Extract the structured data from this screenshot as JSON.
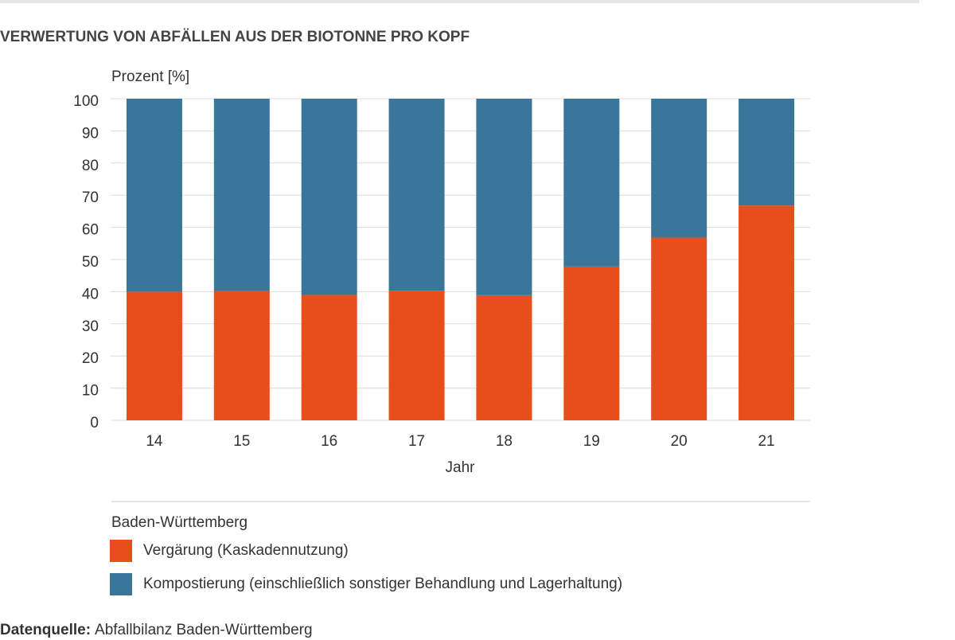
{
  "chart_data": {
    "type": "stacked-bar",
    "title": "VERWERTUNG VON ABFÄLLEN AUS DER BIOTONNE PRO KOPF",
    "y_label": "Prozent [%]",
    "x_label": "Jahr",
    "categories": [
      "14",
      "15",
      "16",
      "17",
      "18",
      "19",
      "20",
      "21"
    ],
    "series": [
      {
        "name": "Vergärung (Kaskadennutzung)",
        "color": "#e84e1b",
        "values": [
          40,
          40.2,
          39,
          40.3,
          38.9,
          47.8,
          56.8,
          66.8
        ]
      },
      {
        "name": "Kompostierung (einschließlich sonstiger Behandlung und Lagerhaltung)",
        "color": "#3a7699",
        "values": [
          60,
          59.8,
          61,
          59.7,
          61.1,
          52.2,
          43.2,
          33.2
        ]
      }
    ],
    "ylim": [
      0,
      100
    ],
    "yticks": [
      0,
      10,
      20,
      30,
      40,
      50,
      60,
      70,
      80,
      90,
      100
    ],
    "grid": true,
    "legend_title": "Baden-Württemberg",
    "source_label": "Datenquelle:",
    "source": "Abfallbilanz Baden-Württemberg"
  }
}
